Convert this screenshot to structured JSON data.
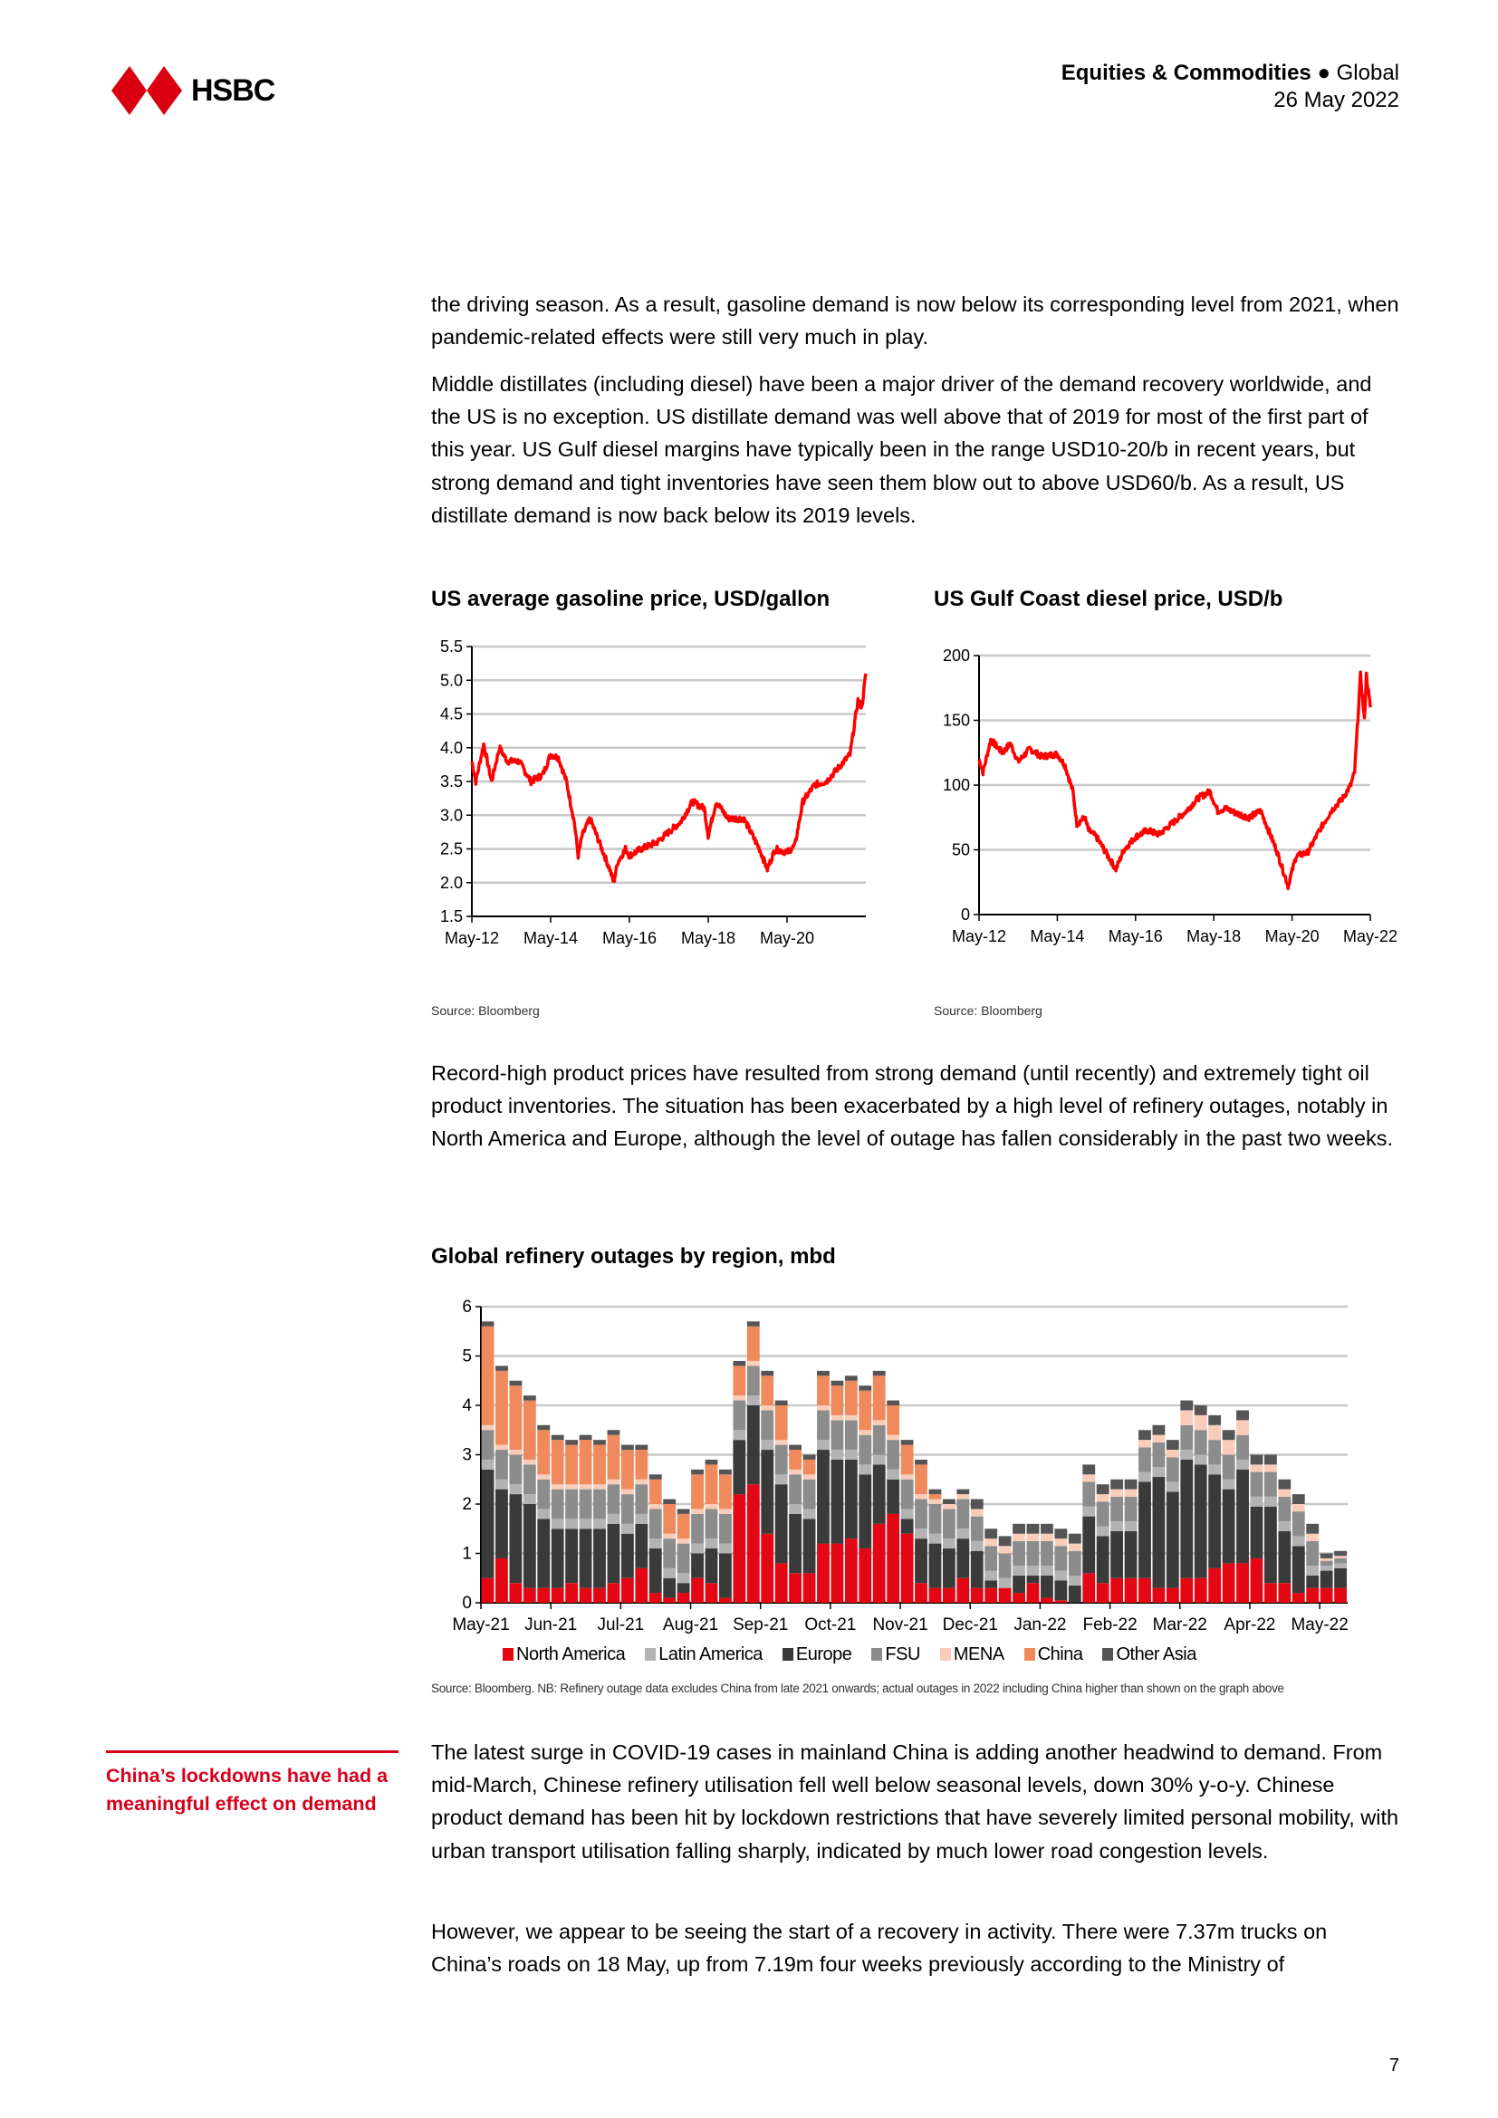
{
  "header": {
    "logo_text": "HSBC",
    "section": "Equities & Commodities",
    "bullet": "●",
    "region": "Global",
    "date": "26 May 2022"
  },
  "paragraphs": {
    "p1": "the driving season. As a result, gasoline demand is now below its corresponding level from 2021, when pandemic-related effects were still very much in play.",
    "p2": "Middle distillates (including diesel) have been a major driver of the demand recovery worldwide, and the US is no exception. US distillate demand was well above that of 2019 for most of the first part of this year. US Gulf diesel margins have typically been in the range USD10-20/b in recent years, but strong demand and tight inventories have seen them blow out to above USD60/b. As a result, US distillate demand is now back below its 2019 levels.",
    "p3": "Record-high product prices have resulted from strong demand (until recently) and extremely tight oil product inventories. The situation has been exacerbated by a high level of refinery outages, notably in North America and Europe, although the level of outage has fallen considerably in the past two weeks.",
    "p4": "The latest surge in COVID-19 cases in mainland China is adding another headwind to demand. From mid-March, Chinese refinery utilisation fell well below seasonal levels, down 30% y-o-y. Chinese product demand has been hit by lockdown restrictions that have severely limited personal mobility, with urban transport utilisation falling sharply, indicated by much lower road congestion levels.",
    "p5": "However, we appear to be seeing the start of a recovery in activity. There were 7.37m trucks on China’s roads on 18 May, up from 7.19m four weeks previously according to the Ministry of"
  },
  "sidebar_note": "China’s lockdowns have had a meaningful effect on demand",
  "page_number": "7",
  "colors": {
    "brand_red": "#db0011",
    "line_red": "#ff0000"
  },
  "chart_data": [
    {
      "type": "line",
      "title": "US average gasoline price, USD/gallon",
      "source": "Source: Bloomberg",
      "x_unit": "years since May-12",
      "xlim": [
        0,
        10
      ],
      "ylim": [
        1.5,
        5.5
      ],
      "yticks": [
        "5.5",
        "5.0",
        "4.5",
        "4.0",
        "3.5",
        "3.0",
        "2.5",
        "2.0",
        "1.5"
      ],
      "ytick_values": [
        5.5,
        5.0,
        4.5,
        4.0,
        3.5,
        3.0,
        2.5,
        2.0,
        1.5
      ],
      "xticks": [
        "May-12",
        "May-14",
        "May-16",
        "May-18",
        "May-20"
      ],
      "xtick_values": [
        0,
        2,
        4,
        6,
        8
      ],
      "color": "#ff0000",
      "grid": true,
      "points": [
        [
          0,
          3.8
        ],
        [
          0.1,
          3.5
        ],
        [
          0.3,
          4.05
        ],
        [
          0.5,
          3.5
        ],
        [
          0.7,
          4.0
        ],
        [
          0.9,
          3.8
        ],
        [
          1.2,
          3.8
        ],
        [
          1.5,
          3.5
        ],
        [
          1.8,
          3.6
        ],
        [
          2.0,
          3.9
        ],
        [
          2.2,
          3.85
        ],
        [
          2.4,
          3.5
        ],
        [
          2.6,
          2.9
        ],
        [
          2.7,
          2.4
        ],
        [
          2.8,
          2.7
        ],
        [
          3.0,
          2.95
        ],
        [
          3.1,
          2.8
        ],
        [
          3.3,
          2.5
        ],
        [
          3.5,
          2.2
        ],
        [
          3.6,
          2.0
        ],
        [
          3.7,
          2.3
        ],
        [
          3.9,
          2.5
        ],
        [
          4.0,
          2.4
        ],
        [
          4.3,
          2.5
        ],
        [
          4.7,
          2.6
        ],
        [
          5.0,
          2.75
        ],
        [
          5.3,
          2.9
        ],
        [
          5.6,
          3.2
        ],
        [
          5.9,
          3.1
        ],
        [
          6.0,
          2.7
        ],
        [
          6.2,
          3.2
        ],
        [
          6.5,
          2.95
        ],
        [
          6.9,
          2.95
        ],
        [
          7.3,
          2.5
        ],
        [
          7.5,
          2.2
        ],
        [
          7.7,
          2.5
        ],
        [
          8.0,
          2.45
        ],
        [
          8.2,
          2.55
        ],
        [
          8.4,
          3.2
        ],
        [
          8.7,
          3.45
        ],
        [
          9.0,
          3.5
        ],
        [
          9.3,
          3.7
        ],
        [
          9.6,
          3.9
        ],
        [
          9.8,
          4.7
        ],
        [
          9.9,
          4.6
        ],
        [
          10.0,
          5.1
        ]
      ]
    },
    {
      "type": "line",
      "title": "US Gulf Coast diesel price, USD/b",
      "source": "Source: Bloomberg",
      "x_unit": "years since May-12",
      "xlim": [
        0,
        10
      ],
      "ylim": [
        0,
        200
      ],
      "yticks": [
        "200",
        "150",
        "100",
        "50",
        "0"
      ],
      "ytick_values": [
        200,
        150,
        100,
        50,
        0
      ],
      "xticks": [
        "May-12",
        "May-14",
        "May-16",
        "May-18",
        "May-20",
        "May-22"
      ],
      "xtick_values": [
        0,
        2,
        4,
        6,
        8,
        10
      ],
      "color": "#ff0000",
      "grid": true,
      "points": [
        [
          0,
          120
        ],
        [
          0.1,
          110
        ],
        [
          0.3,
          135
        ],
        [
          0.6,
          125
        ],
        [
          0.8,
          132
        ],
        [
          1.0,
          118
        ],
        [
          1.3,
          128
        ],
        [
          1.6,
          122
        ],
        [
          2.0,
          124
        ],
        [
          2.2,
          115
        ],
        [
          2.4,
          95
        ],
        [
          2.5,
          70
        ],
        [
          2.7,
          75
        ],
        [
          2.8,
          65
        ],
        [
          3.0,
          60
        ],
        [
          3.3,
          45
        ],
        [
          3.5,
          35
        ],
        [
          3.7,
          50
        ],
        [
          4.0,
          60
        ],
        [
          4.3,
          65
        ],
        [
          4.6,
          62
        ],
        [
          5.0,
          72
        ],
        [
          5.3,
          80
        ],
        [
          5.6,
          90
        ],
        [
          5.9,
          95
        ],
        [
          6.1,
          80
        ],
        [
          6.3,
          82
        ],
        [
          6.6,
          78
        ],
        [
          6.9,
          75
        ],
        [
          7.2,
          80
        ],
        [
          7.6,
          50
        ],
        [
          7.9,
          22
        ],
        [
          8.1,
          45
        ],
        [
          8.4,
          48
        ],
        [
          8.7,
          65
        ],
        [
          9.0,
          80
        ],
        [
          9.3,
          90
        ],
        [
          9.5,
          100
        ],
        [
          9.6,
          110
        ],
        [
          9.75,
          185
        ],
        [
          9.85,
          150
        ],
        [
          9.9,
          185
        ],
        [
          10.0,
          160
        ]
      ]
    },
    {
      "type": "bar",
      "stacked": true,
      "title": "Global refinery outages by region, mbd",
      "source": "Source: Bloomberg. NB: Refinery outage data excludes China from late 2021 onwards; actual outages in 2022 including China higher than shown on the graph above",
      "ylim": [
        0,
        6
      ],
      "yticks": [
        "6",
        "5",
        "4",
        "3",
        "2",
        "1",
        "0"
      ],
      "ytick_values": [
        6,
        5,
        4,
        3,
        2,
        1,
        0
      ],
      "xticks": [
        "May-21",
        "Jun-21",
        "Jul-21",
        "Aug-21",
        "Sep-21",
        "Oct-21",
        "Nov-21",
        "Dec-21",
        "Jan-22",
        "Feb-22",
        "Mar-22",
        "Apr-22",
        "May-22"
      ],
      "periods_per_month": 5,
      "grid": true,
      "legend_position": "bottom",
      "series": [
        {
          "name": "North America",
          "color": "#e30613",
          "values": [
            0.5,
            0.9,
            0.4,
            0.3,
            0.3,
            0.3,
            0.4,
            0.3,
            0.3,
            0.4,
            0.5,
            0.7,
            0.2,
            0.1,
            0.2,
            0.5,
            0.4,
            0.1,
            2.2,
            2.4,
            1.4,
            0.8,
            0.6,
            0.6,
            1.2,
            1.2,
            1.3,
            1.1,
            1.6,
            1.8,
            1.4,
            0.4,
            0.3,
            0.3,
            0.5,
            0.3,
            0.3,
            0.3,
            0.2,
            0.4,
            0.1,
            0.05,
            0,
            0.6,
            0.4,
            0.5,
            0.5,
            0.5,
            0.3,
            0.3,
            0.5,
            0.5,
            0.7,
            0.8,
            0.8,
            0.9,
            0.4,
            0.4,
            0.2,
            0.3,
            0.3,
            0.3
          ]
        },
        {
          "name": "Europe",
          "color": "#3a3a3a",
          "values": [
            2.2,
            1.4,
            1.8,
            1.7,
            1.4,
            1.2,
            1.1,
            1.2,
            1.2,
            1.2,
            0.9,
            0.9,
            0.9,
            0.4,
            0.2,
            0.5,
            0.7,
            0.9,
            1.1,
            1.6,
            1.7,
            1.6,
            1.2,
            1.1,
            1.9,
            1.7,
            1.6,
            1.5,
            1.2,
            0.7,
            0.3,
            0.9,
            0.9,
            0.8,
            0.8,
            0.75,
            0.15,
            0,
            0.35,
            0.15,
            0.45,
            0.4,
            0.35,
            1.15,
            0.95,
            0.95,
            0.95,
            1.95,
            2.25,
            1.95,
            2.4,
            2.3,
            1.9,
            1.5,
            1.9,
            1.05,
            1.55,
            1.05,
            0.95,
            0.25,
            0.35,
            0.4
          ]
        },
        {
          "name": "Latin America",
          "color": "#b3b3b3",
          "values": [
            0.2,
            0.2,
            0.2,
            0.2,
            0.2,
            0.2,
            0.2,
            0.2,
            0.2,
            0.2,
            0.2,
            0.2,
            0.2,
            0.2,
            0.2,
            0.2,
            0.2,
            0.2,
            0.2,
            0.2,
            0.2,
            0.2,
            0.2,
            0.2,
            0.2,
            0.2,
            0.2,
            0.2,
            0.2,
            0.2,
            0.2,
            0.2,
            0.2,
            0.2,
            0.2,
            0.2,
            0.2,
            0.2,
            0.2,
            0.2,
            0.2,
            0.2,
            0.2,
            0.2,
            0.2,
            0.2,
            0.2,
            0.2,
            0.2,
            0.2,
            0.2,
            0.2,
            0.2,
            0.2,
            0.2,
            0.2,
            0.2,
            0.2,
            0.2,
            0.2,
            0.1,
            0.1
          ]
        },
        {
          "name": "FSU",
          "color": "#8c8c8c",
          "values": [
            0.6,
            0.6,
            0.6,
            0.6,
            0.6,
            0.6,
            0.6,
            0.6,
            0.6,
            0.6,
            0.6,
            0.6,
            0.6,
            0.6,
            0.6,
            0.6,
            0.6,
            0.6,
            0.6,
            0.6,
            0.6,
            0.6,
            0.6,
            0.6,
            0.6,
            0.6,
            0.6,
            0.6,
            0.6,
            0.6,
            0.6,
            0.6,
            0.6,
            0.6,
            0.6,
            0.5,
            0.5,
            0.5,
            0.5,
            0.5,
            0.5,
            0.5,
            0.5,
            0.5,
            0.5,
            0.5,
            0.5,
            0.5,
            0.5,
            0.5,
            0.5,
            0.5,
            0.5,
            0.5,
            0.5,
            0.5,
            0.5,
            0.5,
            0.5,
            0.5,
            0.1,
            0.1
          ]
        },
        {
          "name": "MENA",
          "color": "#f9cdb9",
          "values": [
            0.1,
            0.1,
            0.1,
            0.1,
            0.1,
            0.1,
            0.1,
            0.1,
            0.1,
            0.1,
            0.1,
            0.1,
            0.1,
            0.1,
            0.1,
            0.1,
            0.1,
            0.1,
            0.1,
            0.1,
            0.1,
            0.1,
            0.1,
            0.1,
            0.1,
            0.1,
            0.1,
            0.1,
            0.1,
            0.1,
            0.1,
            0.1,
            0.1,
            0.1,
            0.1,
            0.15,
            0.15,
            0.15,
            0.15,
            0.15,
            0.15,
            0.15,
            0.15,
            0.15,
            0.15,
            0.15,
            0.15,
            0.15,
            0.15,
            0.15,
            0.3,
            0.3,
            0.3,
            0.3,
            0.3,
            0.15,
            0.15,
            0.15,
            0.15,
            0.15,
            0.05,
            0.05
          ]
        },
        {
          "name": "China",
          "color": "#f08a5d",
          "values": [
            2.0,
            1.5,
            1.3,
            1.2,
            0.9,
            0.9,
            0.8,
            0.9,
            0.8,
            0.9,
            0.8,
            0.6,
            0.5,
            0.6,
            0.5,
            0.7,
            0.8,
            0.7,
            0.6,
            0.7,
            0.6,
            0.7,
            0.4,
            0.3,
            0.6,
            0.6,
            0.7,
            0.8,
            0.9,
            0.6,
            0.6,
            0.6,
            0.1,
            0,
            0,
            0,
            0,
            0,
            0,
            0,
            0,
            0,
            0,
            0,
            0,
            0,
            0,
            0,
            0,
            0,
            0,
            0,
            0,
            0,
            0,
            0,
            0,
            0,
            0,
            0,
            0,
            0
          ]
        },
        {
          "name": "Other Asia",
          "color": "#555555",
          "values": [
            0.1,
            0.1,
            0.1,
            0.1,
            0.1,
            0.1,
            0.1,
            0.1,
            0.1,
            0.1,
            0.1,
            0.1,
            0.1,
            0.1,
            0.1,
            0.1,
            0.1,
            0.1,
            0.1,
            0.1,
            0.1,
            0.1,
            0.1,
            0.1,
            0.1,
            0.1,
            0.1,
            0.1,
            0.1,
            0.1,
            0.1,
            0.1,
            0.1,
            0.1,
            0.1,
            0.2,
            0.2,
            0.2,
            0.2,
            0.2,
            0.2,
            0.2,
            0.2,
            0.2,
            0.2,
            0.2,
            0.2,
            0.2,
            0.2,
            0.2,
            0.2,
            0.2,
            0.2,
            0.2,
            0.2,
            0.2,
            0.2,
            0.2,
            0.2,
            0.2,
            0.1,
            0.1
          ]
        }
      ]
    }
  ]
}
